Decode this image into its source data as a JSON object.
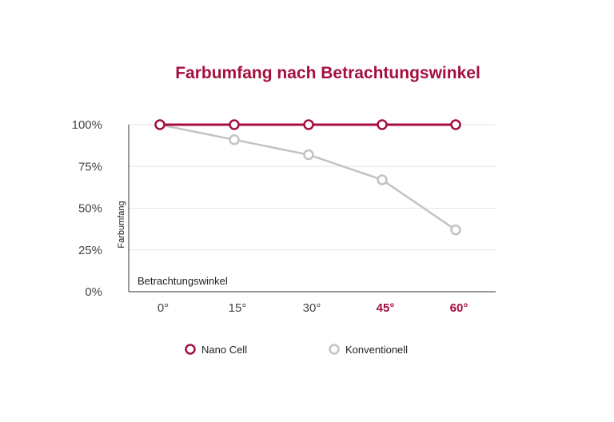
{
  "chart_data": {
    "type": "line",
    "title": "Farbumfang nach Betrachtungswinkel",
    "xlabel": "Betrachtungswinkel",
    "ylabel": "Farbumfang",
    "categories": [
      "0°",
      "15°",
      "30°",
      "45°",
      "60°"
    ],
    "highlighted_categories": [
      "45°",
      "60°"
    ],
    "y_ticks": [
      "0%",
      "25%",
      "50%",
      "75%",
      "100%"
    ],
    "ylim": [
      0,
      100
    ],
    "grid": true,
    "legend_position": "bottom",
    "series": [
      {
        "name": "Nano Cell",
        "values": [
          100,
          100,
          100,
          100,
          100
        ],
        "color": "#a50f3d"
      },
      {
        "name": "Konventionell",
        "values": [
          100,
          91,
          82,
          67,
          37
        ],
        "color": "#c3c3c3"
      }
    ]
  },
  "colors": {
    "accent": "#a50f3d",
    "grid": "#e6e6e6",
    "axis": "#333333",
    "tick_text": "#444444"
  }
}
